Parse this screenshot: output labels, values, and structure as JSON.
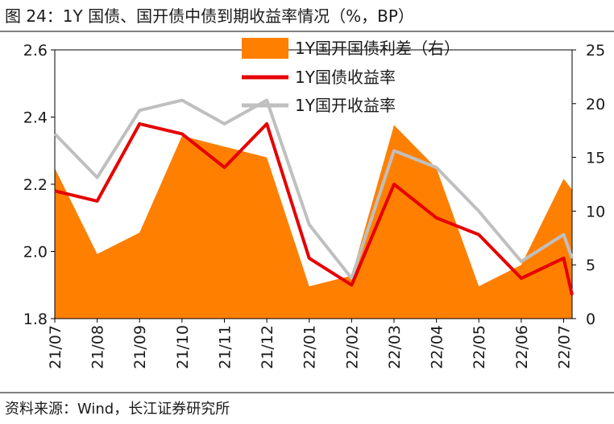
{
  "figure": {
    "title": "图 24：1Y 国债、国开债中债到期收益率情况（%，BP）",
    "source": "资料来源：Wind，长江证券研究所"
  },
  "colors": {
    "spread": "#FF7F00",
    "gov": "#E60000",
    "cdb": "#BFBFBF",
    "axis": "#000000"
  },
  "chart_data": {
    "type": "line",
    "title": "1Y 国债、国开债中债到期收益率情况（%，BP）",
    "categories": [
      "21/07",
      "21/08",
      "21/09",
      "21/10",
      "21/11",
      "21/12",
      "22/01",
      "22/02",
      "22/03",
      "22/04",
      "22/05",
      "22/06",
      "22/07"
    ],
    "x": [
      0,
      1,
      2,
      3,
      4,
      5,
      6,
      7,
      8,
      9,
      10,
      11,
      12,
      12.2
    ],
    "y_left": {
      "min": 1.8,
      "max": 2.6,
      "ticks": [
        1.8,
        2.0,
        2.2,
        2.4,
        2.6
      ],
      "labels": [
        "1.8",
        "2.0",
        "2.2",
        "2.4",
        "2.6"
      ]
    },
    "y_right": {
      "min": 0,
      "max": 25,
      "ticks": [
        0,
        5,
        10,
        15,
        20,
        25
      ],
      "labels": [
        "0",
        "5",
        "10",
        "15",
        "20",
        "25"
      ]
    },
    "legend": [
      "1Y国开国债利差（右）",
      "1Y国债收益率",
      "1Y国开收益率"
    ],
    "series": [
      {
        "name": "1Y国开国债利差（右）",
        "type": "area",
        "axis": "right",
        "values": [
          14,
          6,
          8,
          17,
          16,
          15,
          3,
          4,
          18,
          14,
          3,
          5,
          13,
          12
        ]
      },
      {
        "name": "1Y国债收益率",
        "type": "line",
        "axis": "left",
        "values": [
          2.18,
          2.15,
          2.38,
          2.35,
          2.25,
          2.38,
          1.98,
          1.9,
          2.2,
          2.1,
          2.05,
          1.92,
          1.98,
          1.87
        ]
      },
      {
        "name": "1Y国开收益率",
        "type": "line",
        "axis": "left",
        "values": [
          2.35,
          2.22,
          2.42,
          2.45,
          2.38,
          2.45,
          2.08,
          1.92,
          2.3,
          2.25,
          2.12,
          1.97,
          2.05,
          1.98
        ]
      }
    ]
  }
}
